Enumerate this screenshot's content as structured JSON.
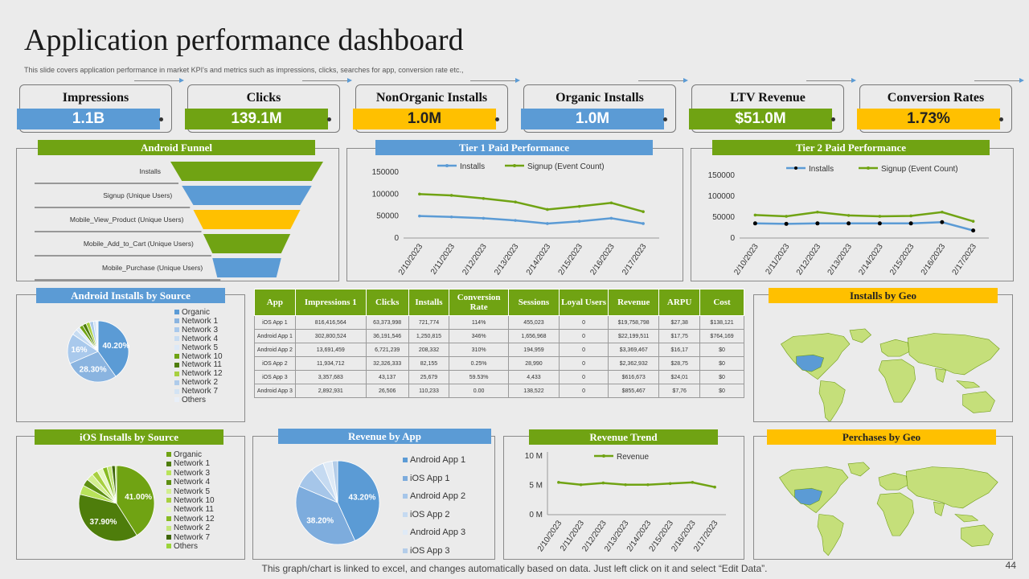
{
  "header": {
    "title": "Application performance dashboard",
    "subtitle": "This slide covers application performance in market KPI's  and metrics such as impressions, clicks, searches for app, conversion rate etc.,"
  },
  "kpis": [
    {
      "label": "Impressions",
      "value": "1.1B",
      "color": "#5b9bd5"
    },
    {
      "label": "Clicks",
      "value": "139.1M",
      "color": "#70a313"
    },
    {
      "label": "NonOrganic Installs",
      "value": "1.0M",
      "color": "#ffc000"
    },
    {
      "label": "Organic Installs",
      "value": "1.0M",
      "color": "#5b9bd5"
    },
    {
      "label": "LTV Revenue",
      "value": "$51.0M",
      "color": "#70a313"
    },
    {
      "label": "Conversion Rates",
      "value": "1.73%",
      "color": "#ffc000"
    }
  ],
  "panels": {
    "android_funnel": "Android Funnel",
    "tier1": "Tier 1 Paid Performance",
    "tier2": "Tier 2 Paid Performance",
    "android_src": "Android Installs by Source",
    "installs_geo": "Installs by Geo",
    "ios_src": "iOS Installs by Source",
    "revenue_app": "Revenue by App",
    "revenue_trend": "Revenue Trend",
    "purchases_geo": "Perchases by Geo"
  },
  "table": {
    "headers": [
      "App",
      "Impressions 1",
      "Clicks",
      "Installs",
      "Conversion Rate",
      "Sessions",
      "Loyal Users",
      "Revenue",
      "ARPU",
      "Cost"
    ],
    "rows": [
      [
        "iOS App  1",
        "816,416,564",
        "63,373,998",
        "721,774",
        "114%",
        "455,023",
        "0",
        "$19,758,798",
        "$27,38",
        "$138,121"
      ],
      [
        "Android App 1",
        "302,800,524",
        "36,191,546",
        "1,250,815",
        "346%",
        "1,656,968",
        "0",
        "$22,199,511",
        "$17,75",
        "$764,169"
      ],
      [
        "Android App 2",
        "13,691,459",
        "6,721,239",
        "208,332",
        "310%",
        "194,959",
        "0",
        "$3,369,467",
        "$16,17",
        "$0"
      ],
      [
        "iOS App  2",
        "11,934,712",
        "32,326,333",
        "82,155",
        "0.25%",
        "28,990",
        "0",
        "$2,362,932",
        "$28,75",
        "$0"
      ],
      [
        "iOS App  3",
        "3,357,683",
        "43,137",
        "25,679",
        "59.53%",
        "4,433",
        "0",
        "$616,673",
        "$24,01",
        "$0"
      ],
      [
        "Android App 3",
        "2,892,931",
        "26,506",
        "110,233",
        "0.00",
        "138,522",
        "0",
        "$855,467",
        "$7,76",
        "$0"
      ]
    ]
  },
  "footer": "This graph/chart is linked to excel, and changes automatically based on data. Just left click on it and select “Edit Data”.",
  "page_number": "44",
  "chart_data": [
    {
      "id": "android_funnel",
      "type": "bar",
      "title": "Android Funnel",
      "categories": [
        "Installs",
        "Signup (Unique Users)",
        "Mobile_View_Product  (Unique Users)",
        "Mobile_Add_to_Cart  (Unique Users)",
        "Mobile_Purchase  (Unique Users)"
      ],
      "values": [
        100,
        85,
        70,
        57,
        45
      ],
      "colors": [
        "#70a313",
        "#5b9bd5",
        "#ffc000",
        "#70a313",
        "#5b9bd5"
      ]
    },
    {
      "id": "tier1",
      "type": "line",
      "title": "Tier 1 Paid Performance",
      "categories": [
        "2/10/2023",
        "2/11/2023",
        "2/12/2023",
        "2/13/2023",
        "2/14/2023",
        "2/15/2023",
        "2/16/2023",
        "2/17/2023"
      ],
      "ylim": [
        0,
        150000
      ],
      "yticks": [
        "0",
        "50000",
        "100000",
        "150000"
      ],
      "ytick_values": [
        0,
        50000,
        100000,
        150000
      ],
      "series": [
        {
          "name": "Installs",
          "color": "#5b9bd5",
          "values": [
            50000,
            48000,
            45000,
            40000,
            33000,
            38000,
            45000,
            33000
          ]
        },
        {
          "name": "Signup (Event Count)",
          "color": "#70a313",
          "values": [
            100000,
            97000,
            90000,
            82000,
            65000,
            72000,
            80000,
            60000
          ]
        }
      ]
    },
    {
      "id": "tier2",
      "type": "line",
      "title": "Tier 2 Paid Performance",
      "categories": [
        "2/10/2023",
        "2/11/2023",
        "2/12/2023",
        "2/13/2023",
        "2/14/2023",
        "2/15/2023",
        "2/16/2023",
        "2/17/2023"
      ],
      "ylim": [
        0,
        150000
      ],
      "yticks": [
        "0",
        "50000",
        "100000",
        "150000"
      ],
      "ytick_values": [
        0,
        50000,
        100000,
        150000
      ],
      "series": [
        {
          "name": "Installs",
          "color": "#5b9bd5",
          "values": [
            35000,
            34000,
            35000,
            35000,
            35000,
            35000,
            38000,
            18000
          ]
        },
        {
          "name": "Signup (Event Count)",
          "color": "#70a313",
          "values": [
            55000,
            52000,
            62000,
            54000,
            52000,
            53000,
            62000,
            40000
          ]
        }
      ]
    },
    {
      "id": "android_src",
      "type": "pie",
      "title": "Android Installs by Source",
      "labels": [
        "Organic",
        "Network 1",
        "Network 3",
        "Network 4",
        "Network 5",
        "Network 10",
        "Network 11",
        "Network 12",
        "Network 2",
        "Network 7",
        "Others"
      ],
      "values": [
        40.2,
        28.3,
        16,
        3,
        2,
        2,
        2,
        2,
        2,
        1.5,
        1
      ],
      "data_labels": [
        "40.20%",
        "28.30%",
        "16%",
        "",
        "",
        "",
        "",
        "",
        "",
        "",
        ""
      ],
      "colors": [
        "#5b9bd5",
        "#8ab4e0",
        "#a9c9ec",
        "#c7dcf2",
        "#dde9f7",
        "#70a313",
        "#4e7d0b",
        "#a8d040",
        "#aecbea",
        "#d3e3f4",
        "#e8eff8"
      ]
    },
    {
      "id": "ios_src",
      "type": "pie",
      "title": "iOS Installs by Source",
      "labels": [
        "Organic",
        "Network 1",
        "Network 3",
        "Network 4",
        "Network 5",
        "Network 10",
        "Network 11",
        "Network 12",
        "Network 2",
        "Network 7",
        "Others"
      ],
      "values": [
        41,
        37.9,
        4,
        3,
        3,
        2.5,
        2.5,
        2,
        2,
        1.5,
        0.6
      ],
      "data_labels": [
        "41.00%",
        "37.90%",
        "",
        "",
        "",
        "",
        "",
        "",
        "",
        "",
        ""
      ],
      "colors": [
        "#70a313",
        "#4e7d0b",
        "#b9e35a",
        "#5e8f12",
        "#d2ef8f",
        "#a8d040",
        "#e7f7c3",
        "#87bb22",
        "#c4e77a",
        "#3f6609",
        "#9bd43a"
      ]
    },
    {
      "id": "revenue_app",
      "type": "pie",
      "title": "Revenue by App",
      "labels": [
        "Android App 1",
        "iOS App 1",
        "Android App 2",
        "iOS App 2",
        "Android App 3",
        "iOS App 3"
      ],
      "values": [
        43.2,
        38.2,
        8,
        5,
        3.5,
        2.1
      ],
      "data_labels": [
        "43.20%",
        "38.20%",
        "",
        "",
        "",
        ""
      ],
      "colors": [
        "#5b9bd5",
        "#7dacdd",
        "#a6c6e9",
        "#c5daf1",
        "#dfeaf6",
        "#b4cde9"
      ]
    },
    {
      "id": "revenue_trend",
      "type": "line",
      "title": "Revenue Trend",
      "categories": [
        "2/10/2023",
        "2/11/2023",
        "2/12/2023",
        "2/13/2023",
        "2/14/2023",
        "2/15/2023",
        "2/16/2023",
        "2/17/2023"
      ],
      "ylim": [
        0,
        10
      ],
      "yticks": [
        "0 M",
        "5 M",
        "10 M"
      ],
      "ytick_values": [
        0,
        5,
        10
      ],
      "series": [
        {
          "name": "Revenue",
          "color": "#70a313",
          "values": [
            5.5,
            5.1,
            5.4,
            5.1,
            5.1,
            5.3,
            5.5,
            4.7
          ]
        }
      ]
    }
  ]
}
